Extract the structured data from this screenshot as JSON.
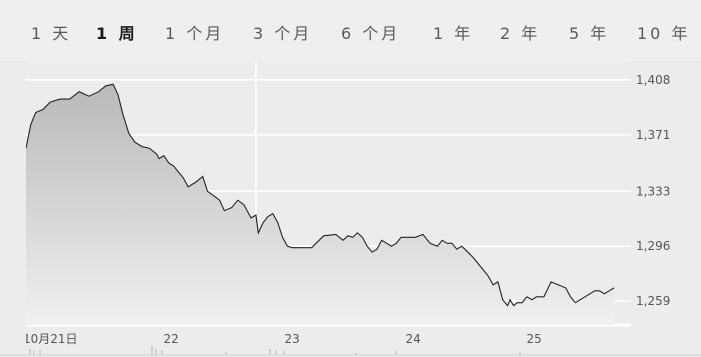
{
  "range_tabs": [
    {
      "label": "1 天",
      "active": false
    },
    {
      "label": "1 周",
      "active": true
    },
    {
      "label": "1 个月",
      "active": false
    },
    {
      "label": "3 个月",
      "active": false
    },
    {
      "label": "6 个月",
      "active": false
    },
    {
      "label": "1 年",
      "active": false
    },
    {
      "label": "2 年",
      "active": false
    },
    {
      "label": "5 年",
      "active": false
    },
    {
      "label": "10 年",
      "active": false
    }
  ],
  "colors": {
    "line": "#222222",
    "fill_top": "#b9b9b9",
    "fill_bottom": "#f0f0f0",
    "plot_bg": "#ececec",
    "grid": "#ffffff",
    "text": "#555555"
  },
  "chart_data": {
    "type": "area",
    "ylim": [
      1243,
      1420
    ],
    "xlim": [
      0,
      5
    ],
    "yticks": [
      {
        "value": 1408,
        "label": "1,408"
      },
      {
        "value": 1371,
        "label": "1,371"
      },
      {
        "value": 1333,
        "label": "1,333"
      },
      {
        "value": 1296,
        "label": "1,296"
      },
      {
        "value": 1259,
        "label": "1,259"
      }
    ],
    "xticks": [
      {
        "value": 0.2,
        "label": "10月21日"
      },
      {
        "value": 1.2,
        "label": "22"
      },
      {
        "value": 2.2,
        "label": "23"
      },
      {
        "value": 3.2,
        "label": "24"
      },
      {
        "value": 4.2,
        "label": "25"
      }
    ],
    "day_boundaries": [
      1.9
    ],
    "x": [
      0,
      0.04,
      0.08,
      0.14,
      0.2,
      0.28,
      0.36,
      0.44,
      0.52,
      0.6,
      0.66,
      0.72,
      0.76,
      0.8,
      0.85,
      0.9,
      0.96,
      1.02,
      1.08,
      1.1,
      1.14,
      1.18,
      1.22,
      1.26,
      1.3,
      1.34,
      1.4,
      1.46,
      1.5,
      1.55,
      1.6,
      1.64,
      1.7,
      1.75,
      1.8,
      1.86,
      1.9,
      1.92,
      1.96,
      2.0,
      2.04,
      2.08,
      2.12,
      2.16,
      2.2,
      2.24,
      2.28,
      2.36,
      2.46,
      2.56,
      2.62,
      2.66,
      2.7,
      2.74,
      2.78,
      2.82,
      2.86,
      2.9,
      2.94,
      2.98,
      3.02,
      3.06,
      3.1,
      3.16,
      3.22,
      3.28,
      3.34,
      3.4,
      3.44,
      3.48,
      3.52,
      3.56,
      3.6,
      3.64,
      3.7,
      3.76,
      3.82,
      3.86,
      3.9,
      3.94,
      3.98,
      4.0,
      4.03,
      4.06,
      4.1,
      4.14,
      4.18,
      4.22,
      4.28,
      4.34,
      4.4,
      4.46,
      4.5,
      4.54,
      4.58,
      4.62,
      4.66,
      4.7,
      4.74,
      4.78,
      4.82,
      4.86
    ],
    "values": [
      1362,
      1378,
      1386,
      1388,
      1393,
      1395,
      1395,
      1400,
      1397,
      1400,
      1404,
      1405,
      1398,
      1385,
      1372,
      1366,
      1363,
      1362,
      1358,
      1355,
      1357,
      1352,
      1350,
      1346,
      1342,
      1336,
      1339,
      1343,
      1333,
      1330,
      1327,
      1320,
      1322,
      1327,
      1324,
      1315,
      1317,
      1305,
      1312,
      1316,
      1318,
      1312,
      1302,
      1296,
      1295,
      1295,
      1295,
      1295,
      1303,
      1304,
      1300,
      1303,
      1302,
      1305,
      1302,
      1296,
      1292,
      1294,
      1300,
      1298,
      1296,
      1298,
      1302,
      1302,
      1302,
      1304,
      1298,
      1296,
      1300,
      1298,
      1298,
      1294,
      1296,
      1293,
      1288,
      1282,
      1276,
      1270,
      1272,
      1260,
      1256,
      1260,
      1256,
      1258,
      1258,
      1262,
      1260,
      1262,
      1262,
      1272,
      1270,
      1268,
      1262,
      1258,
      1260,
      1262,
      1264,
      1266,
      1266,
      1264,
      1266,
      1268
    ]
  }
}
